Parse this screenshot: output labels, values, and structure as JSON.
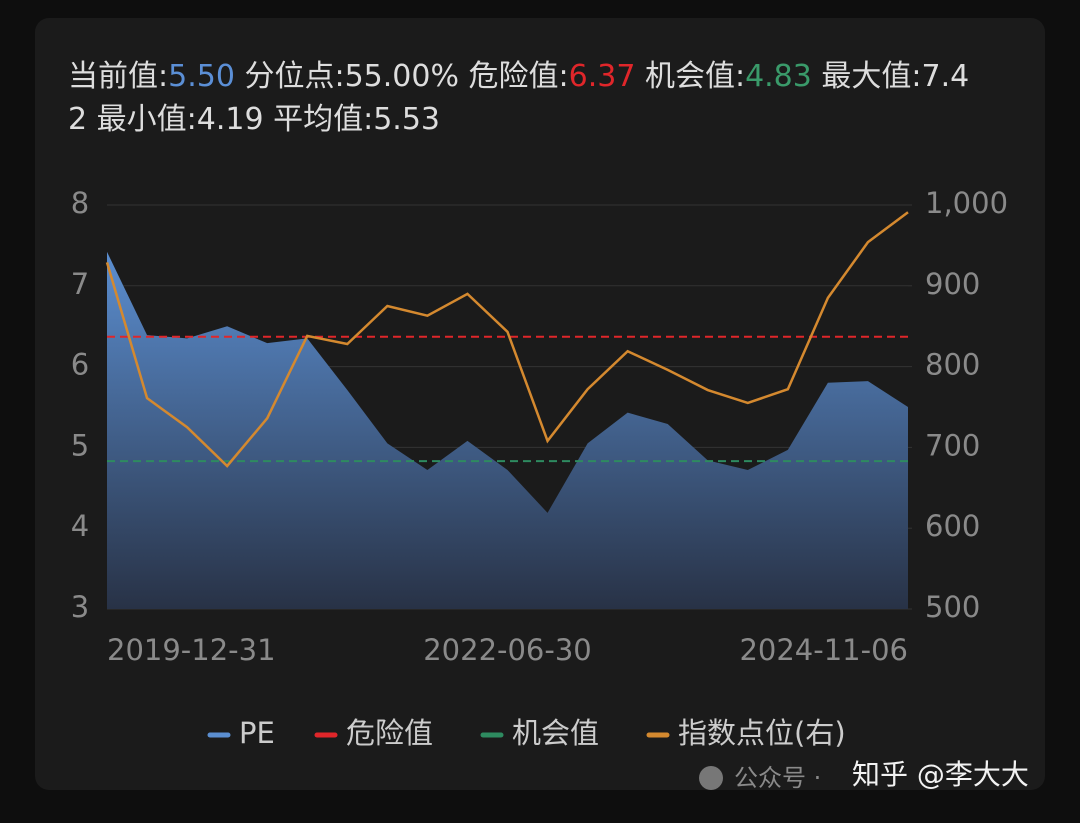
{
  "header": {
    "items": [
      {
        "label": "当前值:",
        "value": "5.50",
        "color": "#5b8fd6"
      },
      {
        "label": "分位点:",
        "value": "55.00%",
        "color": "#dddddd"
      },
      {
        "label": "危险值:",
        "value": "6.37",
        "color": "#e0262a"
      },
      {
        "label": "机会值:",
        "value": "4.83",
        "color": "#3a9a6a"
      },
      {
        "label": "最大值:",
        "value": "7.42",
        "color": "#dddddd"
      },
      {
        "label": "最小值:",
        "value": "4.19",
        "color": "#dddddd"
      },
      {
        "label": "平均值:",
        "value": "5.53",
        "color": "#dddddd"
      }
    ]
  },
  "chart_data": {
    "type": "area-line",
    "categories": [
      "2019-12-31",
      null,
      null,
      null,
      null,
      null,
      null,
      null,
      null,
      null,
      "2022-06-30",
      null,
      null,
      null,
      null,
      null,
      null,
      null,
      null,
      null,
      "2024-11-06"
    ],
    "series": [
      {
        "name": "PE",
        "color": "#5b8ed0",
        "type": "area",
        "values": [
          7.42,
          6.39,
          6.35,
          6.5,
          6.29,
          6.35,
          5.71,
          5.05,
          4.72,
          5.08,
          4.72,
          4.19,
          5.05,
          5.43,
          5.29,
          4.84,
          4.72,
          4.97,
          5.8,
          5.82,
          5.5
        ]
      },
      {
        "name": "危险值",
        "color": "#e0262a",
        "type": "hline",
        "value": 6.37
      },
      {
        "name": "机会值",
        "color": "#2e8b60",
        "type": "hline",
        "value": 4.83
      },
      {
        "name": "指数点位(右)",
        "color": "#d4892f",
        "type": "line",
        "axis": "y2",
        "values": [
          929,
          761,
          725,
          677,
          736,
          838,
          828,
          875,
          863,
          890,
          843,
          708,
          772,
          819,
          796,
          771,
          755,
          772,
          885,
          954,
          991
        ]
      }
    ],
    "ylim": [
      3,
      8
    ],
    "yticks": [
      3,
      4,
      5,
      6,
      7,
      8
    ],
    "y2lim": [
      500,
      1000
    ],
    "y2ticks": [
      500,
      600,
      700,
      800,
      900,
      {
        "value": 1000,
        "label": "1,000"
      }
    ],
    "grid": true,
    "legend": "bottom"
  },
  "watermark": [
    "公众号 ·",
    "知乎 @李大大"
  ]
}
